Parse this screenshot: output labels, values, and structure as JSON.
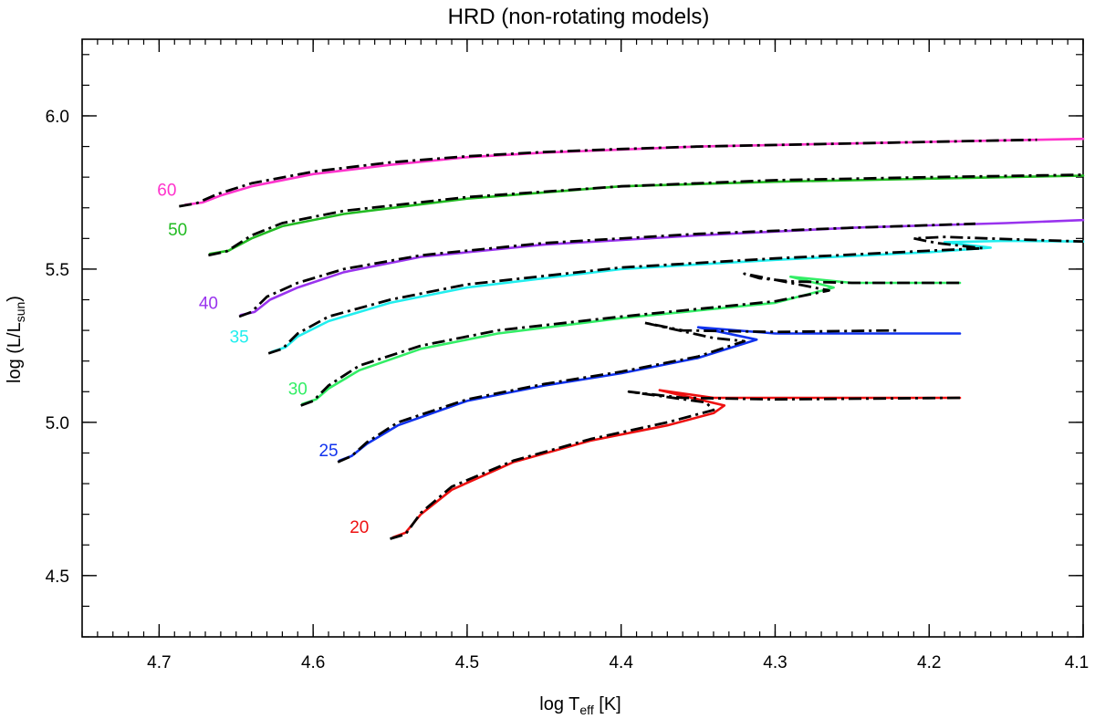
{
  "chart_data": {
    "type": "line",
    "title": "HRD (non-rotating models)",
    "xlabel": {
      "main": "log T",
      "sub": "eff",
      "tail": " [K]"
    },
    "ylabel": {
      "main": "log (L/L",
      "sub": "sun",
      "tail": ")"
    },
    "xlim": [
      4.75,
      4.1
    ],
    "ylim": [
      4.3,
      6.25
    ],
    "x_reversed": true,
    "grid": false,
    "x_ticks": [
      "4.7",
      "4.6",
      "4.5",
      "4.4",
      "4.3",
      "4.2",
      "4.1"
    ],
    "y_ticks": [
      "4.5",
      "5.0",
      "5.5",
      "6.0"
    ],
    "x_tick_values": [
      4.7,
      4.6,
      4.5,
      4.4,
      4.3,
      4.2,
      4.1
    ],
    "y_tick_values": [
      4.5,
      5.0,
      5.5,
      6.0
    ],
    "x_minor_step": 0.01,
    "y_minor_step": 0.1,
    "comparison_style": "black dash-dot",
    "series": [
      {
        "name": "60",
        "color": "#ff33cc",
        "label_at": [
          4.695,
          5.74
        ],
        "solid": [
          [
            4.683,
            5.71
          ],
          [
            4.672,
            5.717
          ],
          [
            4.66,
            5.74
          ],
          [
            4.64,
            5.77
          ],
          [
            4.6,
            5.81
          ],
          [
            4.55,
            5.84
          ],
          [
            4.5,
            5.865
          ],
          [
            4.45,
            5.88
          ],
          [
            4.4,
            5.89
          ],
          [
            4.35,
            5.9
          ],
          [
            4.3,
            5.905
          ],
          [
            4.25,
            5.91
          ],
          [
            4.2,
            5.915
          ],
          [
            4.15,
            5.92
          ],
          [
            4.1,
            5.925
          ]
        ],
        "dashed": [
          [
            4.687,
            5.705
          ],
          [
            4.676,
            5.714
          ],
          [
            4.662,
            5.745
          ],
          [
            4.64,
            5.78
          ],
          [
            4.6,
            5.818
          ],
          [
            4.55,
            5.848
          ],
          [
            4.5,
            5.868
          ],
          [
            4.45,
            5.882
          ],
          [
            4.4,
            5.892
          ],
          [
            4.35,
            5.9
          ],
          [
            4.3,
            5.905
          ],
          [
            4.25,
            5.91
          ],
          [
            4.2,
            5.915
          ],
          [
            4.15,
            5.92
          ],
          [
            4.13,
            5.922
          ]
        ]
      },
      {
        "name": "50",
        "color": "#22bb22",
        "label_at": [
          4.688,
          5.61
        ],
        "solid": [
          [
            4.667,
            5.55
          ],
          [
            4.655,
            5.56
          ],
          [
            4.64,
            5.6
          ],
          [
            4.62,
            5.64
          ],
          [
            4.58,
            5.68
          ],
          [
            4.5,
            5.73
          ],
          [
            4.4,
            5.77
          ],
          [
            4.3,
            5.785
          ],
          [
            4.2,
            5.795
          ],
          [
            4.1,
            5.805
          ]
        ],
        "dashed": [
          [
            4.668,
            5.545
          ],
          [
            4.656,
            5.558
          ],
          [
            4.64,
            5.61
          ],
          [
            4.62,
            5.65
          ],
          [
            4.58,
            5.69
          ],
          [
            4.5,
            5.735
          ],
          [
            4.4,
            5.77
          ],
          [
            4.3,
            5.79
          ],
          [
            4.2,
            5.8
          ],
          [
            4.1,
            5.808
          ]
        ]
      },
      {
        "name": "40",
        "color": "#9933ee",
        "label_at": [
          4.668,
          5.37
        ],
        "solid": [
          [
            4.647,
            5.35
          ],
          [
            4.638,
            5.36
          ],
          [
            4.628,
            5.4
          ],
          [
            4.61,
            5.44
          ],
          [
            4.58,
            5.49
          ],
          [
            4.53,
            5.54
          ],
          [
            4.45,
            5.58
          ],
          [
            4.35,
            5.61
          ],
          [
            4.25,
            5.635
          ],
          [
            4.15,
            5.65
          ],
          [
            4.1,
            5.66
          ]
        ],
        "dashed": [
          [
            4.648,
            5.345
          ],
          [
            4.64,
            5.36
          ],
          [
            4.63,
            5.41
          ],
          [
            4.61,
            5.455
          ],
          [
            4.58,
            5.5
          ],
          [
            4.53,
            5.545
          ],
          [
            4.45,
            5.585
          ],
          [
            4.35,
            5.615
          ],
          [
            4.25,
            5.635
          ],
          [
            4.17,
            5.648
          ]
        ]
      },
      {
        "name": "35",
        "color": "#22eeee",
        "label_at": [
          4.648,
          5.26
        ],
        "solid": [
          [
            4.627,
            5.23
          ],
          [
            4.618,
            5.245
          ],
          [
            4.61,
            5.28
          ],
          [
            4.59,
            5.33
          ],
          [
            4.55,
            5.39
          ],
          [
            4.5,
            5.44
          ],
          [
            4.4,
            5.5
          ],
          [
            4.3,
            5.53
          ],
          [
            4.2,
            5.555
          ],
          [
            4.16,
            5.57
          ],
          [
            4.19,
            5.588
          ],
          [
            4.15,
            5.592
          ],
          [
            4.1,
            5.59
          ]
        ],
        "dashed": [
          [
            4.629,
            5.225
          ],
          [
            4.62,
            5.24
          ],
          [
            4.61,
            5.29
          ],
          [
            4.59,
            5.345
          ],
          [
            4.55,
            5.4
          ],
          [
            4.5,
            5.45
          ],
          [
            4.4,
            5.505
          ],
          [
            4.3,
            5.535
          ],
          [
            4.2,
            5.56
          ],
          [
            4.165,
            5.568
          ],
          [
            4.195,
            5.585
          ],
          [
            4.21,
            5.6
          ],
          [
            4.19,
            5.605
          ],
          [
            4.15,
            5.598
          ],
          [
            4.1,
            5.59
          ]
        ]
      },
      {
        "name": "30",
        "color": "#33ee66",
        "label_at": [
          4.61,
          5.09
        ],
        "solid": [
          [
            4.607,
            5.06
          ],
          [
            4.598,
            5.075
          ],
          [
            4.59,
            5.11
          ],
          [
            4.57,
            5.17
          ],
          [
            4.53,
            5.24
          ],
          [
            4.48,
            5.29
          ],
          [
            4.4,
            5.34
          ],
          [
            4.3,
            5.39
          ],
          [
            4.262,
            5.44
          ],
          [
            4.29,
            5.475
          ],
          [
            4.25,
            5.455
          ],
          [
            4.18,
            5.455
          ]
        ],
        "dashed": [
          [
            4.608,
            5.055
          ],
          [
            4.6,
            5.07
          ],
          [
            4.59,
            5.12
          ],
          [
            4.57,
            5.185
          ],
          [
            4.53,
            5.25
          ],
          [
            4.48,
            5.3
          ],
          [
            4.4,
            5.345
          ],
          [
            4.3,
            5.395
          ],
          [
            4.265,
            5.43
          ],
          [
            4.32,
            5.485
          ],
          [
            4.31,
            5.47
          ],
          [
            4.29,
            5.46
          ],
          [
            4.25,
            5.455
          ],
          [
            4.18,
            5.455
          ]
        ]
      },
      {
        "name": "25",
        "color": "#1133ee",
        "label_at": [
          4.59,
          4.89
        ],
        "solid": [
          [
            4.583,
            4.875
          ],
          [
            4.575,
            4.89
          ],
          [
            4.565,
            4.93
          ],
          [
            4.545,
            4.99
          ],
          [
            4.5,
            5.07
          ],
          [
            4.45,
            5.12
          ],
          [
            4.4,
            5.16
          ],
          [
            4.35,
            5.21
          ],
          [
            4.312,
            5.27
          ],
          [
            4.35,
            5.31
          ],
          [
            4.3,
            5.29
          ],
          [
            4.18,
            5.29
          ]
        ],
        "dashed": [
          [
            4.584,
            4.87
          ],
          [
            4.575,
            4.89
          ],
          [
            4.565,
            4.935
          ],
          [
            4.545,
            5.0
          ],
          [
            4.5,
            5.075
          ],
          [
            4.45,
            5.125
          ],
          [
            4.4,
            5.165
          ],
          [
            4.35,
            5.215
          ],
          [
            4.32,
            5.265
          ],
          [
            4.34,
            5.275
          ],
          [
            4.385,
            5.325
          ],
          [
            4.36,
            5.3
          ],
          [
            4.3,
            5.295
          ],
          [
            4.22,
            5.3
          ]
        ]
      },
      {
        "name": "20",
        "color": "#ee1111",
        "label_at": [
          4.57,
          4.64
        ],
        "solid": [
          [
            4.548,
            4.625
          ],
          [
            4.54,
            4.64
          ],
          [
            4.53,
            4.7
          ],
          [
            4.51,
            4.78
          ],
          [
            4.47,
            4.87
          ],
          [
            4.42,
            4.94
          ],
          [
            4.37,
            4.99
          ],
          [
            4.34,
            5.03
          ],
          [
            4.333,
            5.055
          ],
          [
            4.375,
            5.105
          ],
          [
            4.34,
            5.08
          ],
          [
            4.3,
            5.08
          ],
          [
            4.18,
            5.08
          ]
        ],
        "dashed": [
          [
            4.55,
            4.62
          ],
          [
            4.54,
            4.635
          ],
          [
            4.53,
            4.705
          ],
          [
            4.51,
            4.79
          ],
          [
            4.47,
            4.875
          ],
          [
            4.42,
            4.945
          ],
          [
            4.37,
            5.0
          ],
          [
            4.34,
            5.04
          ],
          [
            4.345,
            5.065
          ],
          [
            4.395,
            5.1
          ],
          [
            4.36,
            5.08
          ],
          [
            4.3,
            5.075
          ],
          [
            4.18,
            5.08
          ]
        ]
      }
    ]
  }
}
